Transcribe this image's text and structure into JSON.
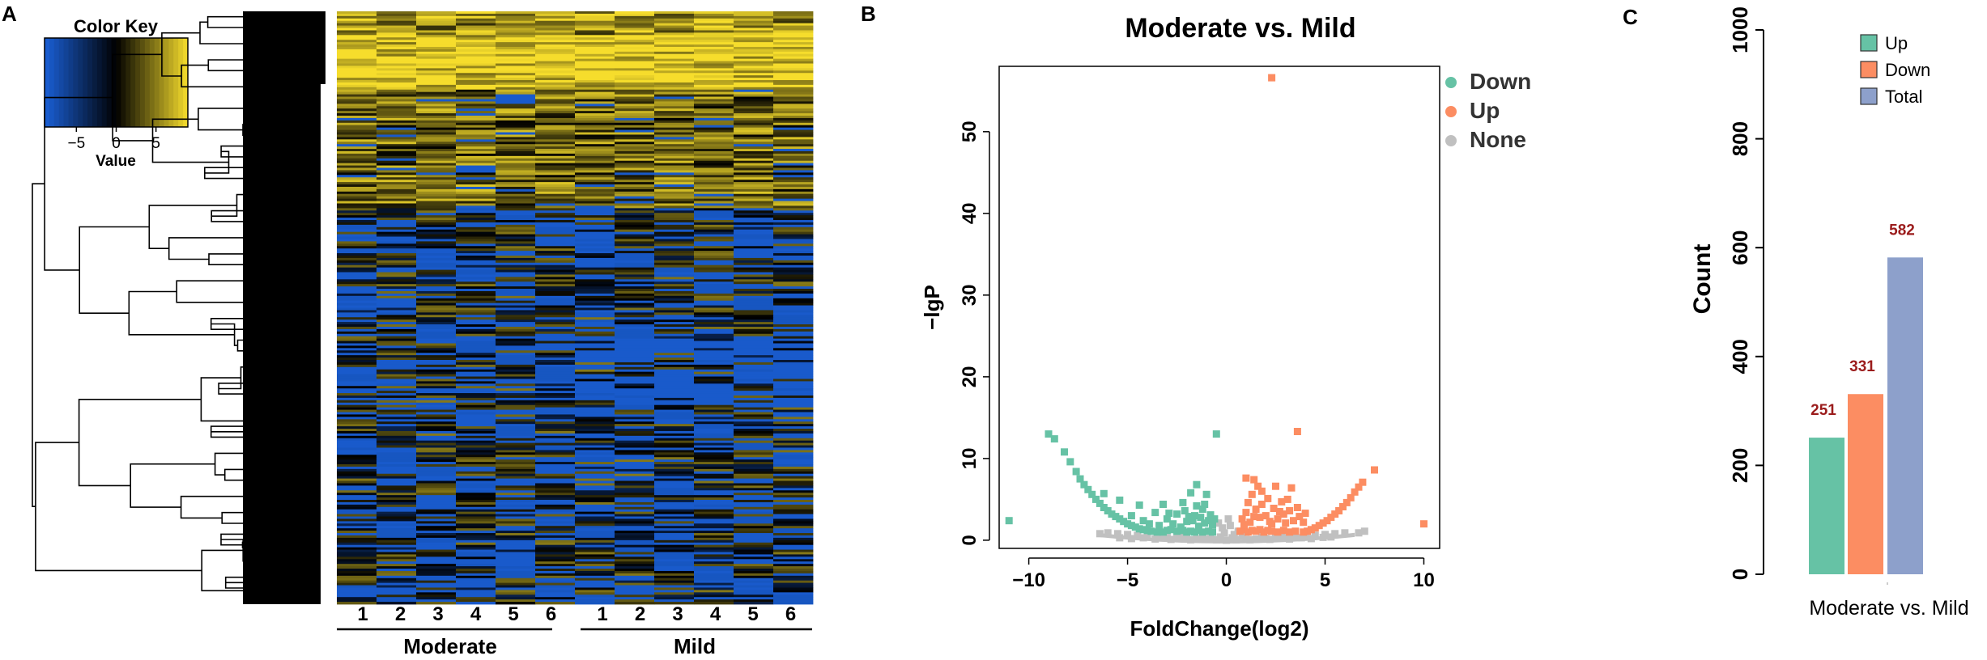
{
  "panels": {
    "a": {
      "label": "A"
    },
    "b": {
      "label": "B"
    },
    "c": {
      "label": "C"
    }
  },
  "colors": {
    "heat_low": "#1a5fd6",
    "heat_mid": "#000000",
    "heat_high": "#f6dd2c",
    "down": "#66c2a5",
    "up": "#fc8d62",
    "none": "#c0c0c0",
    "total": "#8da0cb",
    "value_label": "#9b1c1c"
  },
  "chart_data": [
    {
      "type": "heatmap",
      "title": "",
      "color_key": {
        "title": "Color Key",
        "xlabel": "Value",
        "ticks": [
          -5,
          0,
          5
        ],
        "tick_labels": [
          "−5",
          "0",
          "5"
        ],
        "range": [
          -9,
          9
        ]
      },
      "columns": [
        "1",
        "2",
        "3",
        "4",
        "5",
        "6",
        "1",
        "2",
        "3",
        "4",
        "5",
        "6"
      ],
      "groups": [
        {
          "name": "Moderate",
          "columns": [
            0,
            5
          ]
        },
        {
          "name": "Mild",
          "columns": [
            6,
            11
          ]
        }
      ],
      "n_rows": 600,
      "dendrogram": "rows"
    },
    {
      "type": "scatter",
      "title": "Moderate vs. Mild",
      "xlabel": "FoldChange(log2)",
      "ylabel": "−lgP",
      "xlim": [
        -11.5,
        10.8
      ],
      "ylim": [
        -1,
        58
      ],
      "xticks": [
        -10,
        -5,
        0,
        5,
        10
      ],
      "xtick_labels": [
        "−10",
        "−5",
        "0",
        "5",
        "10"
      ],
      "yticks": [
        0,
        10,
        20,
        30,
        40,
        50
      ],
      "ytick_labels": [
        "0",
        "10",
        "20",
        "30",
        "40",
        "50"
      ],
      "legend": [
        "Down",
        "Up",
        "None"
      ],
      "series": [
        {
          "name": "Down",
          "points": [
            [
              -11.0,
              2.4
            ],
            [
              -9.0,
              13.0
            ],
            [
              -8.7,
              12.4
            ],
            [
              -8.2,
              10.8
            ],
            [
              -7.9,
              9.6
            ],
            [
              -7.6,
              8.4
            ],
            [
              -7.4,
              7.5
            ],
            [
              -7.2,
              6.8
            ],
            [
              -7.0,
              6.2
            ],
            [
              -6.8,
              5.6
            ],
            [
              -6.6,
              5.0
            ],
            [
              -6.4,
              4.5
            ],
            [
              -6.2,
              4.0
            ],
            [
              -6.0,
              3.6
            ],
            [
              -5.8,
              3.2
            ],
            [
              -5.6,
              2.9
            ],
            [
              -5.4,
              2.6
            ],
            [
              -5.2,
              2.3
            ],
            [
              -5.0,
              2.0
            ],
            [
              -4.8,
              1.8
            ],
            [
              -4.6,
              1.6
            ],
            [
              -4.4,
              1.4
            ],
            [
              -4.2,
              1.3
            ],
            [
              -4.0,
              1.2
            ],
            [
              -3.8,
              1.1
            ],
            [
              -3.5,
              1.0
            ],
            [
              -3.2,
              1.0
            ],
            [
              -3.0,
              1.2
            ],
            [
              -2.8,
              1.3
            ],
            [
              -2.5,
              1.1
            ],
            [
              -2.2,
              1.2
            ],
            [
              -2.0,
              1.0
            ],
            [
              -1.8,
              1.1
            ],
            [
              -1.6,
              1.0
            ],
            [
              -1.4,
              1.2
            ],
            [
              -1.2,
              1.0
            ],
            [
              -0.9,
              1.1
            ],
            [
              -0.7,
              1.0
            ],
            [
              -6.2,
              5.7
            ],
            [
              -5.4,
              4.9
            ],
            [
              -4.8,
              3.0
            ],
            [
              -4.4,
              4.3
            ],
            [
              -3.9,
              2.0
            ],
            [
              -3.6,
              3.4
            ],
            [
              -3.2,
              4.4
            ],
            [
              -3.0,
              2.6
            ],
            [
              -2.7,
              2.0
            ],
            [
              -2.5,
              3.2
            ],
            [
              -2.3,
              1.6
            ],
            [
              -2.1,
              3.6
            ],
            [
              -2.0,
              2.3
            ],
            [
              -1.8,
              5.8
            ],
            [
              -1.7,
              2.4
            ],
            [
              -1.6,
              3.0
            ],
            [
              -1.5,
              4.2
            ],
            [
              -1.4,
              1.7
            ],
            [
              -1.3,
              2.8
            ],
            [
              -1.2,
              3.8
            ],
            [
              -1.1,
              2.1
            ],
            [
              -1.0,
              5.6
            ],
            [
              -0.9,
              2.4
            ],
            [
              -0.8,
              3.1
            ],
            [
              -0.7,
              1.9
            ],
            [
              -0.6,
              2.6
            ],
            [
              -1.5,
              6.8
            ],
            [
              -0.5,
              13.0
            ],
            [
              -4.2,
              2.4
            ],
            [
              -3.4,
              1.8
            ],
            [
              -2.9,
              3.3
            ],
            [
              -2.2,
              4.6
            ],
            [
              -1.9,
              2.9
            ],
            [
              -1.1,
              4.4
            ]
          ]
        },
        {
          "name": "Up",
          "points": [
            [
              2.3,
              56.6
            ],
            [
              3.6,
              13.3
            ],
            [
              10.0,
              2.0
            ],
            [
              7.5,
              8.6
            ],
            [
              6.9,
              7.1
            ],
            [
              6.7,
              6.5
            ],
            [
              6.5,
              5.9
            ],
            [
              6.3,
              5.2
            ],
            [
              6.1,
              4.6
            ],
            [
              5.9,
              4.1
            ],
            [
              5.7,
              3.6
            ],
            [
              5.5,
              3.2
            ],
            [
              5.3,
              2.8
            ],
            [
              5.1,
              2.4
            ],
            [
              4.9,
              2.1
            ],
            [
              4.7,
              1.8
            ],
            [
              4.5,
              1.5
            ],
            [
              4.3,
              1.3
            ],
            [
              4.1,
              1.1
            ],
            [
              3.9,
              1.0
            ],
            [
              0.7,
              1.1
            ],
            [
              0.9,
              1.3
            ],
            [
              1.1,
              1.0
            ],
            [
              1.3,
              1.2
            ],
            [
              1.5,
              1.1
            ],
            [
              1.7,
              1.3
            ],
            [
              1.9,
              1.0
            ],
            [
              2.1,
              1.2
            ],
            [
              2.3,
              1.1
            ],
            [
              2.6,
              1.0
            ],
            [
              2.9,
              1.2
            ],
            [
              3.2,
              1.0
            ],
            [
              3.5,
              1.1
            ],
            [
              0.8,
              2.6
            ],
            [
              1.0,
              3.4
            ],
            [
              1.2,
              2.2
            ],
            [
              1.3,
              5.6
            ],
            [
              1.4,
              7.4
            ],
            [
              1.5,
              3.8
            ],
            [
              1.6,
              6.6
            ],
            [
              1.7,
              2.8
            ],
            [
              1.8,
              4.4
            ],
            [
              2.0,
              3.0
            ],
            [
              2.1,
              5.1
            ],
            [
              2.2,
              2.3
            ],
            [
              2.4,
              3.9
            ],
            [
              2.5,
              6.6
            ],
            [
              2.6,
              2.6
            ],
            [
              2.8,
              4.7
            ],
            [
              2.9,
              3.2
            ],
            [
              3.0,
              2.1
            ],
            [
              3.2,
              3.6
            ],
            [
              3.3,
              6.4
            ],
            [
              3.4,
              2.4
            ],
            [
              3.6,
              4.0
            ],
            [
              3.7,
              2.9
            ],
            [
              3.9,
              2.2
            ],
            [
              4.0,
              3.3
            ],
            [
              1.0,
              7.6
            ],
            [
              1.8,
              6.0
            ],
            [
              2.7,
              3.5
            ],
            [
              1.1,
              4.6
            ],
            [
              2.3,
              2.0
            ],
            [
              3.1,
              5.0
            ],
            [
              0.9,
              1.9
            ],
            [
              1.4,
              2.9
            ]
          ]
        },
        {
          "name": "None",
          "points": [
            [
              -6.4,
              0.8
            ],
            [
              -6.0,
              0.9
            ],
            [
              -5.5,
              0.8
            ],
            [
              -5.0,
              0.7
            ],
            [
              -4.5,
              0.6
            ],
            [
              -4.0,
              0.5
            ],
            [
              -3.5,
              0.4
            ],
            [
              -3.0,
              0.3
            ],
            [
              -2.5,
              0.25
            ],
            [
              -2.0,
              0.2
            ],
            [
              -1.5,
              0.15
            ],
            [
              -1.0,
              0.1
            ],
            [
              -0.5,
              0.05
            ],
            [
              0.0,
              0.0
            ],
            [
              0.5,
              0.05
            ],
            [
              1.0,
              0.1
            ],
            [
              1.5,
              0.15
            ],
            [
              2.0,
              0.2
            ],
            [
              2.5,
              0.25
            ],
            [
              3.0,
              0.3
            ],
            [
              3.5,
              0.4
            ],
            [
              4.0,
              0.5
            ],
            [
              4.5,
              0.6
            ],
            [
              5.0,
              0.7
            ],
            [
              5.5,
              0.8
            ],
            [
              6.0,
              0.9
            ],
            [
              6.7,
              0.9
            ],
            [
              7.0,
              1.1
            ],
            [
              -4.8,
              0.2
            ],
            [
              -4.2,
              0.3
            ],
            [
              -3.6,
              0.15
            ],
            [
              -3.2,
              0.5
            ],
            [
              -2.8,
              0.1
            ],
            [
              -2.2,
              0.45
            ],
            [
              -1.8,
              0.05
            ],
            [
              -1.2,
              0.35
            ],
            [
              -0.8,
              0.2
            ],
            [
              -0.3,
              0.4
            ],
            [
              0.3,
              0.3
            ],
            [
              0.8,
              0.45
            ],
            [
              1.2,
              0.05
            ],
            [
              1.8,
              0.4
            ],
            [
              2.2,
              0.1
            ],
            [
              2.8,
              0.5
            ],
            [
              3.2,
              0.15
            ],
            [
              3.8,
              0.3
            ],
            [
              4.3,
              0.2
            ],
            [
              4.9,
              0.35
            ],
            [
              -5.4,
              0.3
            ],
            [
              5.3,
              0.4
            ],
            [
              -0.7,
              1.0
            ],
            [
              0.6,
              1.1
            ],
            [
              -0.2,
              1.5
            ],
            [
              0.2,
              1.8
            ],
            [
              -0.4,
              2.1
            ],
            [
              0.1,
              2.6
            ],
            [
              -0.1,
              0.9
            ],
            [
              0.4,
              0.7
            ]
          ]
        }
      ]
    },
    {
      "type": "bar",
      "title": "",
      "categories": [
        "Moderate vs. Mild"
      ],
      "xlabel": "",
      "ylabel": "Count",
      "ylim": [
        0,
        1000
      ],
      "yticks": [
        0,
        200,
        400,
        600,
        800,
        1000
      ],
      "ytick_labels": [
        "0",
        "200",
        "400",
        "600",
        "800",
        "1000"
      ],
      "legend": [
        "Up",
        "Down",
        "Total"
      ],
      "series": [
        {
          "name": "Up",
          "values": [
            251
          ]
        },
        {
          "name": "Down",
          "values": [
            331
          ]
        },
        {
          "name": "Total",
          "values": [
            582
          ]
        }
      ]
    }
  ]
}
